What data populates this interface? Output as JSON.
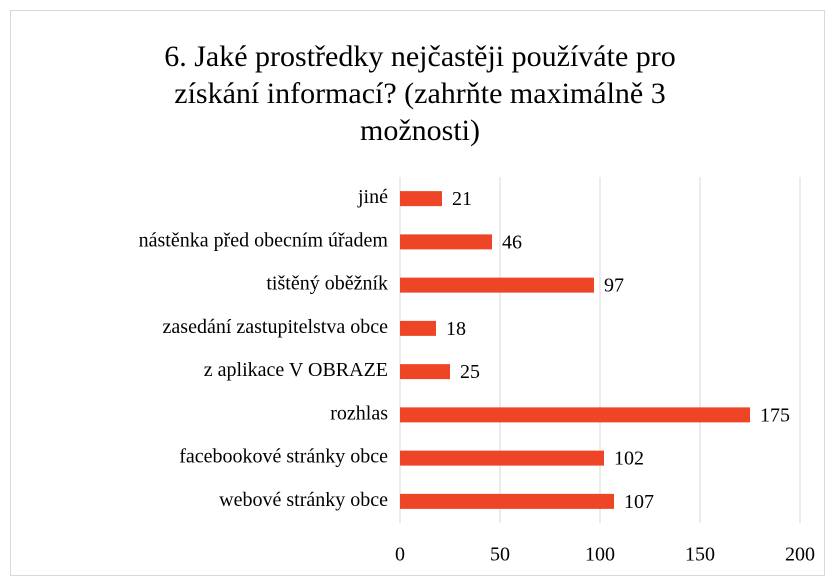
{
  "chart_data": {
    "type": "hbar",
    "title": "6. Jaké prostředky nejčastěji používáte pro získání informací? (zahrňte maximálně 3 možnosti)",
    "categories": [
      "jiné",
      "nástěnka před obecním úřadem",
      "tištěný oběžník",
      "zasedání zastupitelstva obce",
      "z aplikace V OBRAZE",
      "rozhlas",
      "facebookové stránky obce",
      "webové stránky obce"
    ],
    "values": [
      21,
      46,
      97,
      18,
      25,
      175,
      102,
      107
    ],
    "color": "#ee4527",
    "xlim": [
      0,
      200
    ],
    "xticks": [
      0,
      50,
      100,
      150,
      200
    ],
    "grid": true
  }
}
